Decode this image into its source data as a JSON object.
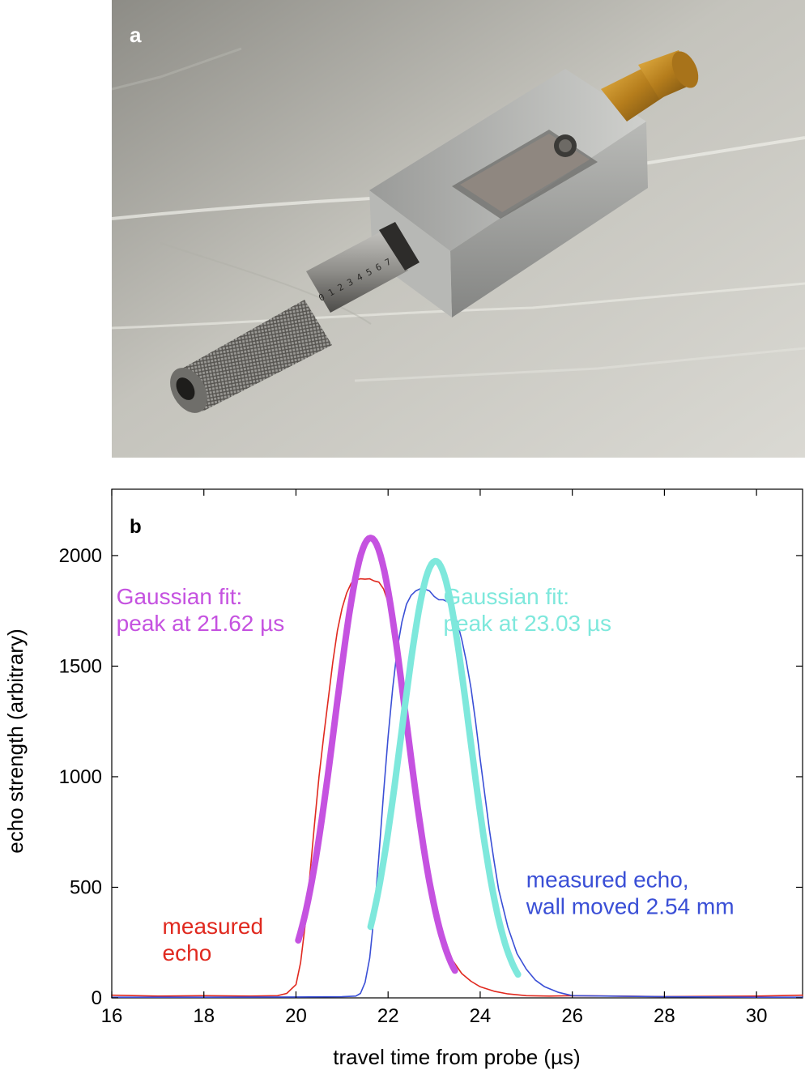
{
  "panel_labels": {
    "a": "a",
    "b": "b"
  },
  "photo": {
    "description_icon": "micrometer-probe-photo-icon",
    "colors": {
      "cloth": "#c9c8c2",
      "block": "#a8a9a7",
      "brass": "#c9922a",
      "barrel": "#8c8b88"
    }
  },
  "chart_data": {
    "type": "line",
    "xlabel": "travel time from probe (µs)",
    "ylabel": "echo strength (arbitrary)",
    "xlim": [
      16,
      31
    ],
    "ylim": [
      0,
      2300
    ],
    "xticks": [
      16,
      18,
      20,
      22,
      24,
      26,
      28,
      30
    ],
    "yticks": [
      0,
      500,
      1000,
      1500,
      2000
    ],
    "grid": false,
    "series": [
      {
        "name": "measured echo",
        "color": "#e0291f",
        "x": [
          16,
          17,
          18,
          19,
          19.6,
          19.8,
          20.0,
          20.1,
          20.2,
          20.3,
          20.4,
          20.5,
          20.6,
          20.7,
          20.8,
          20.9,
          21.0,
          21.1,
          21.2,
          21.3,
          21.4,
          21.5,
          21.6,
          21.7,
          21.8,
          21.9,
          22.0,
          22.1,
          22.2,
          22.3,
          22.4,
          22.5,
          22.6,
          22.7,
          22.8,
          22.9,
          23.0,
          23.2,
          23.4,
          23.6,
          23.8,
          24.0,
          24.3,
          24.6,
          25.0,
          25.5,
          26,
          28,
          30,
          31
        ],
        "y": [
          12,
          8,
          10,
          8,
          10,
          20,
          60,
          160,
          330,
          550,
          780,
          1000,
          1180,
          1350,
          1520,
          1660,
          1760,
          1830,
          1875,
          1890,
          1895,
          1893,
          1895,
          1885,
          1880,
          1850,
          1790,
          1690,
          1560,
          1420,
          1260,
          1100,
          940,
          790,
          650,
          530,
          420,
          280,
          170,
          110,
          75,
          50,
          30,
          18,
          10,
          8,
          10,
          6,
          8,
          12
        ]
      },
      {
        "name": "measured echo, wall moved 2.54 mm",
        "color": "#3a4fd6",
        "x": [
          16,
          18,
          20,
          21.0,
          21.3,
          21.4,
          21.5,
          21.6,
          21.7,
          21.8,
          21.9,
          22.0,
          22.1,
          22.2,
          22.3,
          22.4,
          22.5,
          22.6,
          22.7,
          22.8,
          22.9,
          23.0,
          23.1,
          23.2,
          23.3,
          23.4,
          23.5,
          23.6,
          23.7,
          23.8,
          23.9,
          24.0,
          24.1,
          24.2,
          24.3,
          24.4,
          24.6,
          24.8,
          25.0,
          25.2,
          25.4,
          25.7,
          26,
          28,
          30,
          31
        ],
        "y": [
          3,
          3,
          4,
          5,
          8,
          20,
          70,
          180,
          380,
          640,
          920,
          1180,
          1400,
          1580,
          1700,
          1780,
          1820,
          1840,
          1850,
          1848,
          1840,
          1815,
          1800,
          1800,
          1790,
          1760,
          1700,
          1620,
          1520,
          1400,
          1250,
          1080,
          920,
          760,
          620,
          490,
          320,
          200,
          130,
          80,
          50,
          25,
          10,
          5,
          3,
          3
        ]
      },
      {
        "name": "Gaussian fit: peak at 21.62 µs",
        "color": "#c552e0",
        "fit": {
          "peak": 21.62,
          "amplitude": 2080,
          "sigma": 0.77,
          "xmin": 20.05,
          "xmax": 23.45
        }
      },
      {
        "name": "Gaussian fit: peak at 23.03 µs",
        "color": "#7ee8dc",
        "fit": {
          "peak": 23.03,
          "amplitude": 1975,
          "sigma": 0.74,
          "xmin": 21.62,
          "xmax": 24.82
        }
      }
    ],
    "annotations": [
      {
        "lines": [
          "Gaussian fit:",
          "peak at 21.62 µs"
        ],
        "x": 16.1,
        "y": 1780,
        "color": "#c552e0"
      },
      {
        "lines": [
          "Gaussian fit:",
          "peak at 23.03 µs"
        ],
        "x": 23.2,
        "y": 1780,
        "color": "#7ee8dc"
      },
      {
        "lines": [
          "measured",
          "echo"
        ],
        "x": 17.1,
        "y": 290,
        "color": "#e0291f"
      },
      {
        "lines": [
          "measured echo,",
          "wall moved 2.54 mm"
        ],
        "x": 25.0,
        "y": 500,
        "color": "#3a4fd6"
      }
    ]
  }
}
